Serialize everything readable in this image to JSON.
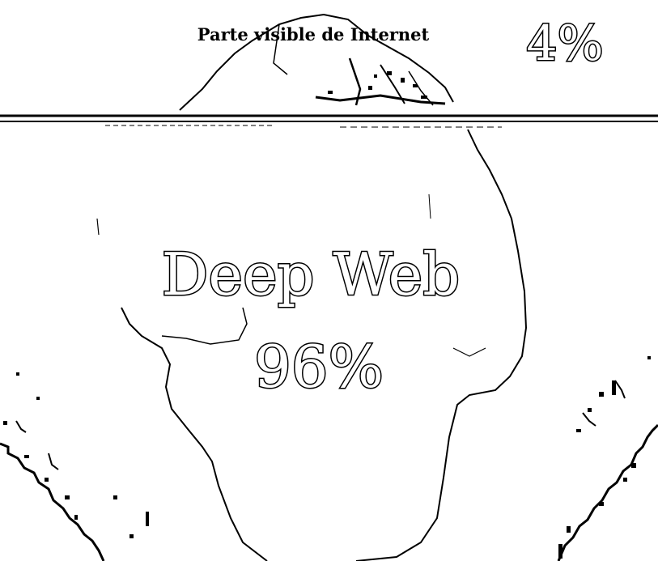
{
  "colors": {
    "ink": "#000000",
    "paper": "#ffffff"
  },
  "visible_part": {
    "label": "Parte visible de Internet",
    "percent": "4%"
  },
  "deep_web": {
    "label": "Deep Web",
    "percent": "96%"
  }
}
